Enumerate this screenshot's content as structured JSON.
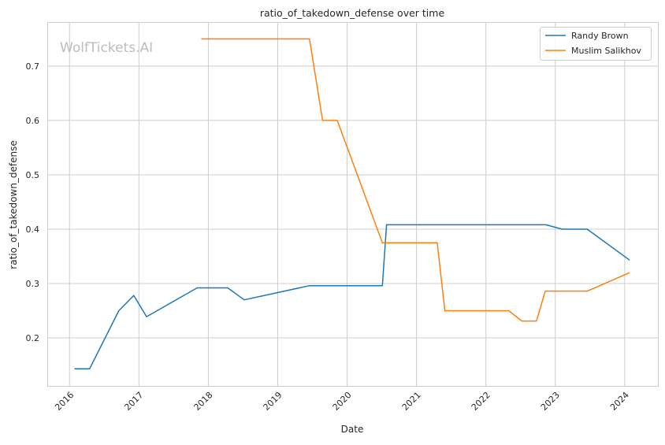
{
  "chart_data": {
    "type": "line",
    "title": "ratio_of_takedown_defense over time",
    "xlabel": "Date",
    "ylabel": "ratio_of_takedown_defense",
    "xlim": [
      "2015-09-06",
      "2024-06-24"
    ],
    "ylim": [
      0.1116,
      0.781
    ],
    "x_ticks": [
      "2016",
      "2017",
      "2018",
      "2019",
      "2020",
      "2021",
      "2022",
      "2023",
      "2024"
    ],
    "y_ticks": [
      "0.2",
      "0.3",
      "0.4",
      "0.5",
      "0.6",
      "0.7"
    ],
    "grid": true,
    "legend_position": "top-right",
    "watermark": "WolfTickets.AI",
    "series": [
      {
        "name": "Randy Brown",
        "color": "#1f77b4",
        "x": [
          "2016-01-27",
          "2016-04-16",
          "2016-09-17",
          "2016-12-05",
          "2017-02-10",
          "2017-11-03",
          "2018-04-13",
          "2018-07-09",
          "2019-06-17",
          "2020-07-05",
          "2020-07-27",
          "2022-11-13",
          "2023-02-06",
          "2023-06-18",
          "2024-01-27"
        ],
        "y": [
          0.143,
          0.143,
          0.25,
          0.278,
          0.239,
          0.292,
          0.292,
          0.27,
          0.296,
          0.296,
          0.408,
          0.408,
          0.4,
          0.4,
          0.343
        ]
      },
      {
        "name": "Muslim Salikhov",
        "color": "#ff7f0e",
        "x": [
          "2017-11-25",
          "2019-06-17",
          "2019-08-25",
          "2019-11-10",
          "2020-07-05",
          "2021-04-20",
          "2021-05-30",
          "2022-05-01",
          "2022-07-09",
          "2022-09-24",
          "2022-11-09",
          "2023-06-18",
          "2024-01-27"
        ],
        "y": [
          0.75,
          0.75,
          0.6,
          0.6,
          0.375,
          0.375,
          0.25,
          0.25,
          0.231,
          0.231,
          0.286,
          0.286,
          0.32
        ]
      }
    ]
  }
}
